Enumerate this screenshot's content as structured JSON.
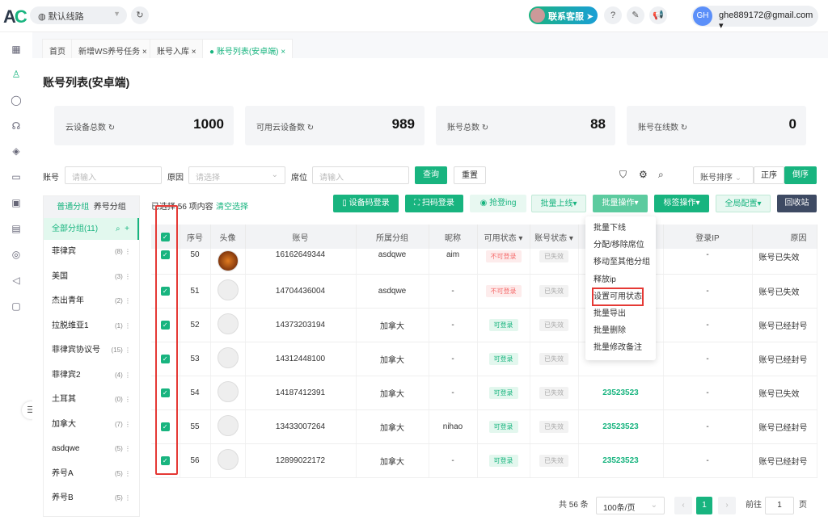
{
  "header": {
    "logo": "AC",
    "route": "默认线路",
    "support": "联系客服",
    "user_initials": "GH",
    "user_email": "ghe889172@gmail.com"
  },
  "sidebar": {
    "icons": [
      "grid-icon",
      "user-icon",
      "whatsapp-icon",
      "headset-icon",
      "layers-icon",
      "folder-icon",
      "monitor-chart-icon",
      "chart-icon",
      "globe-icon",
      "megaphone-icon",
      "desktop-icon"
    ]
  },
  "tabs": [
    {
      "label": "首页"
    },
    {
      "label": "新增WS养号任务"
    },
    {
      "label": "账号入库"
    },
    {
      "label": "账号列表(安卓端)",
      "active": true
    }
  ],
  "page_title": "账号列表(安卓端)",
  "stats": [
    {
      "label": "云设备总数",
      "value": "1000"
    },
    {
      "label": "可用云设备数",
      "value": "989"
    },
    {
      "label": "账号总数",
      "value": "88"
    },
    {
      "label": "账号在线数",
      "value": "0"
    }
  ],
  "filters": {
    "account_label": "账号",
    "account_placeholder": "请输入",
    "reason_label": "原因",
    "reason_placeholder": "请选择",
    "seat_label": "席位",
    "seat_placeholder": "请输入",
    "query": "查询",
    "reset": "重置",
    "sort_select": "账号排序",
    "asc": "正序",
    "desc": "倒序"
  },
  "groups": {
    "tab_normal": "普通分组",
    "tab_raise": "养号分组",
    "all": "全部分组(11)",
    "items": [
      {
        "name": "菲律宾",
        "count": "(8)"
      },
      {
        "name": "美国",
        "count": "(3)"
      },
      {
        "name": "杰出青年",
        "count": "(2)"
      },
      {
        "name": "拉脱维亚1",
        "count": "(1)"
      },
      {
        "name": "菲律宾协议号",
        "count": "(15)"
      },
      {
        "name": "菲律宾2",
        "count": "(4)"
      },
      {
        "name": "土耳其",
        "count": "(0)"
      },
      {
        "name": "加拿大",
        "count": "(7)"
      },
      {
        "name": "asdqwe",
        "count": "(5)"
      },
      {
        "name": "养号A",
        "count": "(5)"
      },
      {
        "name": "养号B",
        "count": "(5)"
      }
    ]
  },
  "toolbar": {
    "selected": "已选择 56 项内容",
    "clear": "清空选择",
    "device_login": "设备码登录",
    "scan_login": "扫码登录",
    "grab": "抢登ing",
    "batch_online": "批量上线▾",
    "batch_ops": "批量操作▾",
    "tag_ops": "标签操作▾",
    "global": "全局配置▾",
    "recycle": "回收站"
  },
  "menu": [
    "批量下线",
    "分配/移除席位",
    "移动至其他分组",
    "释放ip",
    "设置可用状态",
    "批量导出",
    "批量删除",
    "批量修改备注"
  ],
  "table": {
    "headers": [
      "序号",
      "头像",
      "账号",
      "所属分组",
      "昵称",
      "可用状态 ▾",
      "账号状态 ▾",
      "",
      "登录IP",
      "原因"
    ],
    "rows": [
      {
        "no": "50",
        "account": "16162649344",
        "group": "asdqwe",
        "nick": "aim",
        "avail": "不可登录",
        "status": "已失效",
        "code": "",
        "ip": "-",
        "reason": "账号已失效"
      },
      {
        "no": "51",
        "account": "14704436004",
        "group": "asdqwe",
        "nick": "-",
        "avail": "不可登录",
        "status": "已失效",
        "code": "",
        "ip": "-",
        "reason": "账号已失效"
      },
      {
        "no": "52",
        "account": "14373203194",
        "group": "加拿大",
        "nick": "-",
        "avail": "可登录",
        "status": "已失效",
        "code": "",
        "ip": "-",
        "reason": "账号已经封号"
      },
      {
        "no": "53",
        "account": "14312448100",
        "group": "加拿大",
        "nick": "-",
        "avail": "可登录",
        "status": "已失效",
        "code": "",
        "ip": "-",
        "reason": "账号已经封号"
      },
      {
        "no": "54",
        "account": "14187412391",
        "group": "加拿大",
        "nick": "-",
        "avail": "可登录",
        "status": "已失效",
        "code": "23523523",
        "ip": "-",
        "reason": "账号已失效"
      },
      {
        "no": "55",
        "account": "13433007264",
        "group": "加拿大",
        "nick": "nihao",
        "avail": "可登录",
        "status": "已失效",
        "code": "23523523",
        "ip": "-",
        "reason": "账号已经封号"
      },
      {
        "no": "56",
        "account": "12899022172",
        "group": "加拿大",
        "nick": "-",
        "avail": "可登录",
        "status": "已失效",
        "code": "23523523",
        "ip": "-",
        "reason": "账号已经封号"
      }
    ]
  },
  "pagination": {
    "total": "共 56 条",
    "size": "100条/页",
    "page": "1",
    "goto": "前往",
    "goto_value": "1",
    "unit": "页"
  },
  "colors": {
    "accent": "#18b47f",
    "danger": "#f56c6c",
    "highlight": "#e53935"
  }
}
